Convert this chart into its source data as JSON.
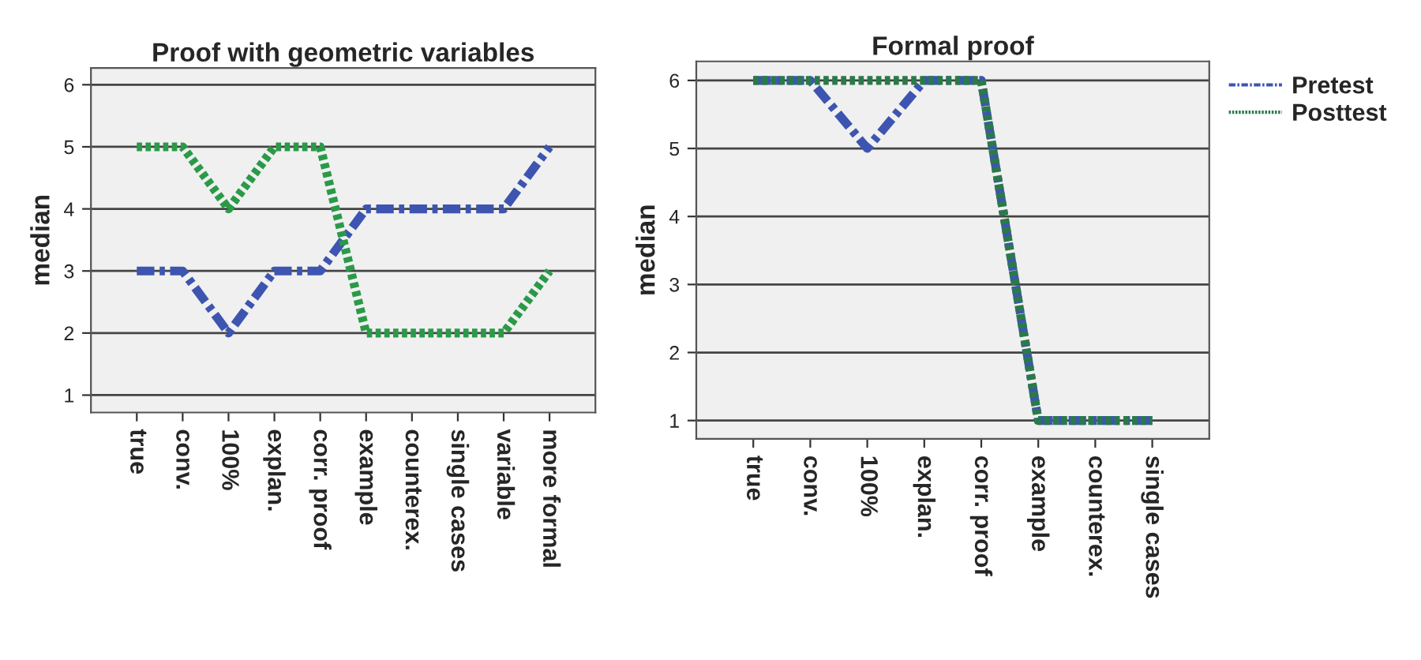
{
  "chart_data": [
    {
      "type": "line",
      "title": "Proof with geometric variables",
      "ylabel": "median",
      "categories": [
        "true",
        "conv.",
        "100%",
        "explan.",
        "corr. proof",
        "example",
        "counterex.",
        "single cases",
        "variable",
        "more formal"
      ],
      "series": [
        {
          "color": "#3d55b0",
          "line_style": "dashed",
          "values": [
            3,
            3,
            2,
            3,
            3,
            4,
            4,
            4,
            4,
            5
          ]
        },
        {
          "color": "#2a9a48",
          "line_style": "dotted",
          "values": [
            5,
            5,
            4,
            5,
            5,
            2,
            2,
            2,
            2,
            3
          ]
        }
      ],
      "ylim": [
        0.72,
        6.27
      ],
      "yticks": [
        1,
        2,
        3,
        4,
        5,
        6
      ],
      "grid": "y"
    },
    {
      "type": "line",
      "title": "Formal proof",
      "ylabel": "median",
      "categories": [
        "true",
        "conv.",
        "100%",
        "explan.",
        "corr. proof",
        "example",
        "counterex.",
        "single cases"
      ],
      "series": [
        {
          "name": "Pretest",
          "color": "#3d55b0",
          "line_style": "dashed",
          "values": [
            6,
            6,
            5,
            6,
            6,
            1,
            1,
            1
          ]
        },
        {
          "name": "Posttest",
          "color": "#2a7a48",
          "line_style": "dotted",
          "values": [
            6,
            6,
            6,
            6,
            6,
            1,
            1,
            1
          ]
        }
      ],
      "ylim": [
        0.73,
        6.28
      ],
      "yticks": [
        1,
        2,
        3,
        4,
        5,
        6
      ],
      "grid": "y",
      "legend": "top right"
    }
  ]
}
